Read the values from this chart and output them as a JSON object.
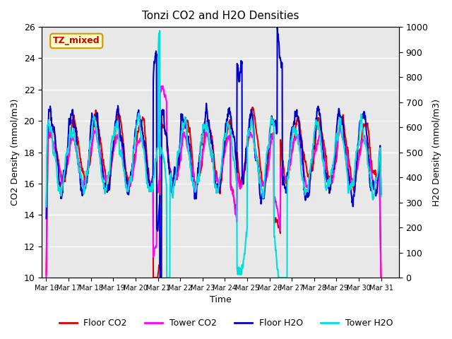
{
  "title": "Tonzi CO2 and H2O Densities",
  "xlabel": "Time",
  "ylabel_left": "CO2 Density (mmol/m3)",
  "ylabel_right": "H2O Density (mmol/m3)",
  "ylim_left": [
    10,
    26
  ],
  "ylim_right": [
    0,
    1000
  ],
  "annotation_text": "TZ_mixed",
  "annotation_bg": "#ffffcc",
  "annotation_border": "#cc9900",
  "annotation_textcolor": "#cc0000",
  "line_colors": {
    "floor_co2": "#dd0000",
    "tower_co2": "#ff00ff",
    "floor_h2o": "#0000cc",
    "tower_h2o": "#00dddd"
  },
  "line_widths": {
    "floor_co2": 1.5,
    "tower_co2": 1.5,
    "floor_h2o": 1.5,
    "tower_h2o": 1.5
  },
  "legend_labels": [
    "Floor CO2",
    "Tower CO2",
    "Floor H2O",
    "Tower H2O"
  ],
  "bg_color": "#e8e8e8",
  "grid_color": "#ffffff",
  "xtick_labels": [
    "Mar 16",
    "Mar 17",
    "Mar 18",
    "Mar 19",
    "Mar 20",
    "Mar 21",
    "Mar 22",
    "Mar 23",
    "Mar 24",
    "Mar 25",
    "Mar 26",
    "Mar 27",
    "Mar 28",
    "Mar 29",
    "Mar 30",
    "Mar 31"
  ],
  "yticks_left": [
    10,
    12,
    14,
    16,
    18,
    20,
    22,
    24,
    26
  ],
  "yticks_right": [
    0,
    100,
    200,
    300,
    400,
    500,
    600,
    700,
    800,
    900,
    1000
  ],
  "n_points": 1440,
  "seed": 42
}
